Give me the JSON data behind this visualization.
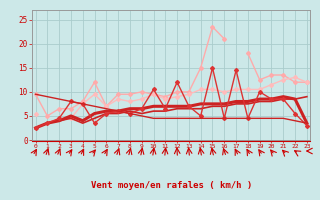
{
  "x": [
    0,
    1,
    2,
    3,
    4,
    5,
    6,
    7,
    8,
    9,
    10,
    11,
    12,
    13,
    14,
    15,
    16,
    17,
    18,
    19,
    20,
    21,
    22,
    23
  ],
  "background_color": "#cce8e8",
  "grid_color": "#aacccc",
  "xlabel": "Vent moyen/en rafales ( km/h )",
  "xlabel_color": "#cc0000",
  "yticks": [
    0,
    5,
    10,
    15,
    20,
    25
  ],
  "ylim": [
    0,
    27
  ],
  "xlim": [
    -0.3,
    23.3
  ],
  "wind_angles": [
    45,
    30,
    35,
    50,
    40,
    55,
    45,
    30,
    25,
    20,
    15,
    10,
    355,
    350,
    345,
    340,
    330,
    320,
    315,
    310,
    305,
    300,
    290,
    270
  ],
  "series": [
    {
      "color": "#ffaaaa",
      "linewidth": 1.0,
      "marker": "D",
      "markersize": 2.0,
      "values": [
        9.5,
        5.0,
        6.5,
        6.5,
        8.0,
        12.0,
        7.0,
        9.5,
        9.5,
        10.0,
        9.5,
        9.0,
        10.0,
        10.0,
        15.0,
        23.5,
        21.0,
        null,
        18.0,
        12.5,
        13.5,
        13.5,
        12.0,
        12.0
      ]
    },
    {
      "color": "#ffbbbb",
      "linewidth": 1.0,
      "marker": "D",
      "markersize": 2.0,
      "values": [
        5.5,
        null,
        null,
        4.5,
        7.5,
        9.5,
        7.0,
        8.5,
        8.0,
        8.5,
        9.5,
        8.5,
        9.0,
        9.5,
        10.5,
        10.5,
        10.0,
        10.5,
        10.5,
        10.5,
        11.5,
        12.5,
        13.0,
        12.0
      ]
    },
    {
      "color": "#cc2222",
      "linewidth": 1.2,
      "marker": null,
      "markersize": 0,
      "values": [
        2.5,
        3.5,
        4.0,
        4.5,
        3.5,
        4.5,
        5.5,
        5.5,
        6.0,
        5.5,
        6.0,
        6.0,
        6.5,
        6.5,
        6.5,
        7.0,
        7.0,
        7.5,
        7.5,
        8.0,
        8.0,
        8.5,
        8.5,
        9.0
      ]
    },
    {
      "color": "#cc2222",
      "linewidth": 2.2,
      "marker": null,
      "markersize": 0,
      "values": [
        2.5,
        3.5,
        4.0,
        5.0,
        4.0,
        5.5,
        6.0,
        6.0,
        6.5,
        6.5,
        7.0,
        7.0,
        7.0,
        7.0,
        7.5,
        7.5,
        7.5,
        8.0,
        8.0,
        8.5,
        8.5,
        9.0,
        8.5,
        3.5
      ]
    },
    {
      "color": "#dd3333",
      "linewidth": 1.0,
      "marker": "D",
      "markersize": 2.0,
      "values": [
        2.5,
        3.5,
        4.5,
        8.0,
        7.5,
        3.5,
        5.5,
        6.0,
        5.5,
        6.5,
        10.5,
        6.5,
        12.0,
        7.0,
        5.0,
        15.0,
        4.5,
        14.5,
        4.5,
        10.0,
        8.5,
        8.5,
        5.5,
        3.0
      ]
    },
    {
      "color": "#cc2222",
      "linewidth": 1.0,
      "marker": null,
      "markersize": 0,
      "values": [
        9.5,
        9.0,
        8.5,
        8.0,
        7.5,
        7.0,
        6.5,
        6.0,
        5.5,
        5.0,
        4.5,
        4.5,
        4.5,
        4.5,
        4.5,
        4.5,
        4.5,
        4.5,
        4.5,
        4.5,
        4.5,
        4.5,
        4.0,
        3.5
      ]
    }
  ]
}
